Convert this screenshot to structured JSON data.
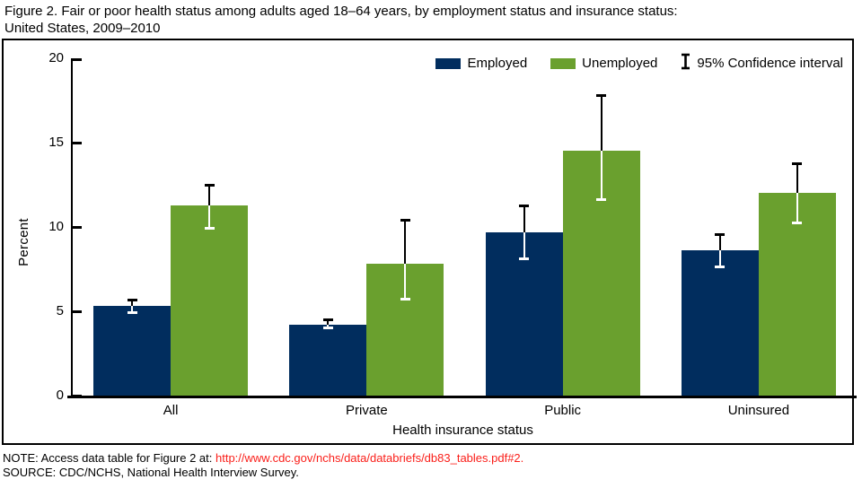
{
  "title": {
    "lines": [
      "Figure 2. Fair or poor health status among adults aged 18–64 years, by employment status and insurance status:",
      "United States, 2009–2010"
    ]
  },
  "legend": {
    "employed": "Employed",
    "unemployed": "Unemployed",
    "ci": "95% Confidence interval"
  },
  "colors": {
    "employed": "#012d5e",
    "unemployed": "#6aa02e",
    "axis": "#000000",
    "link_red": "#fa1e19"
  },
  "chart_data": {
    "type": "bar",
    "title": "Fair or poor health status among adults aged 18–64 years, by employment status and insurance status",
    "categories": [
      "All",
      "Private",
      "Public",
      "Uninsured"
    ],
    "series": [
      {
        "name": "Employed",
        "color": "#012d5e",
        "values": [
          5.3,
          4.2,
          9.7,
          8.6
        ],
        "ci_low": [
          4.9,
          4.0,
          8.1,
          7.6
        ],
        "ci_high": [
          5.7,
          4.5,
          11.3,
          9.6
        ]
      },
      {
        "name": "Unemployed",
        "color": "#6aa02e",
        "values": [
          11.3,
          7.8,
          14.5,
          12.0
        ],
        "ci_low": [
          9.9,
          5.7,
          11.6,
          10.2
        ],
        "ci_high": [
          12.5,
          10.4,
          17.8,
          13.8
        ]
      }
    ],
    "xlabel": "Health insurance status",
    "ylabel": "Percent",
    "ylim": [
      0,
      20
    ],
    "yticks": [
      0,
      5,
      10,
      15,
      20
    ],
    "grid": false,
    "legend_position": "top-right",
    "error_bars": "95% confidence interval"
  },
  "footer": {
    "note_prefix": "NOTE: Access data table for Figure 2 at: ",
    "note_link": "http://www.cdc.gov/nchs/data/databriefs/db83_tables.pdf#2.",
    "source": "SOURCE: CDC/NCHS, National Health Interview Survey."
  }
}
